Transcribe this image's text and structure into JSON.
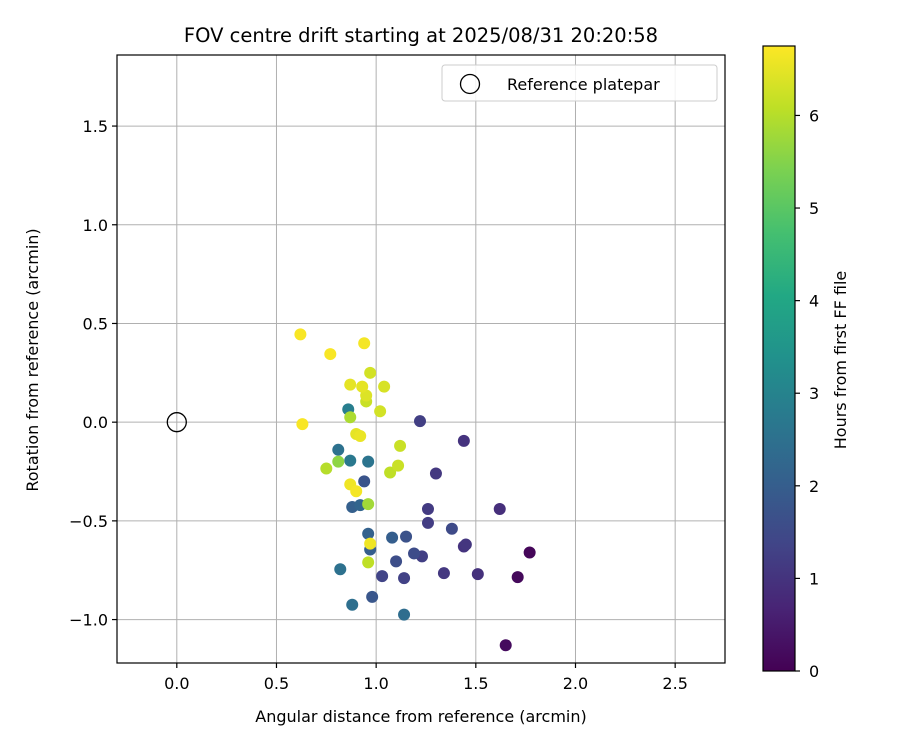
{
  "chart_data": {
    "type": "scatter",
    "title": "FOV centre drift starting at 2025/08/31 20:20:58",
    "xlabel": "Angular distance from reference (arcmin)",
    "ylabel": "Rotation from reference (arcmin)",
    "xlim": [
      -0.3,
      2.75
    ],
    "ylim": [
      -1.22,
      1.86
    ],
    "xticks": [
      0.0,
      0.5,
      1.0,
      1.5,
      2.0,
      2.5
    ],
    "xtick_labels": [
      "0.0",
      "0.5",
      "1.0",
      "1.5",
      "2.0",
      "2.5"
    ],
    "yticks": [
      -1.0,
      -0.5,
      0.0,
      0.5,
      1.0,
      1.5
    ],
    "ytick_labels": [
      "−1.0",
      "−0.5",
      "0.0",
      "0.5",
      "1.0",
      "1.5"
    ],
    "grid": true,
    "legend": {
      "position": "top-right",
      "entries": [
        {
          "label": "Reference platepar",
          "marker": "open-circle"
        }
      ]
    },
    "reference_point": {
      "x": 0.0,
      "y": 0.0
    },
    "colorbar": {
      "label": "Hours from first FF file",
      "colormap": "viridis",
      "range": [
        0,
        6.75
      ],
      "ticks": [
        0,
        1,
        2,
        3,
        4,
        5,
        6
      ],
      "tick_labels": [
        "0",
        "1",
        "2",
        "3",
        "4",
        "5",
        "6"
      ]
    },
    "points": [
      {
        "x": 1.77,
        "y": -0.66,
        "hours": 0.1
      },
      {
        "x": 1.71,
        "y": -0.785,
        "hours": 0.15
      },
      {
        "x": 1.65,
        "y": -1.13,
        "hours": 0.2
      },
      {
        "x": 1.62,
        "y": -0.44,
        "hours": 0.9
      },
      {
        "x": 1.51,
        "y": -0.77,
        "hours": 0.95
      },
      {
        "x": 1.44,
        "y": -0.095,
        "hours": 1.0
      },
      {
        "x": 1.44,
        "y": -0.63,
        "hours": 1.0
      },
      {
        "x": 1.45,
        "y": -0.62,
        "hours": 1.05
      },
      {
        "x": 1.34,
        "y": -0.765,
        "hours": 1.1
      },
      {
        "x": 1.3,
        "y": -0.26,
        "hours": 1.1
      },
      {
        "x": 1.26,
        "y": -0.44,
        "hours": 1.15
      },
      {
        "x": 1.26,
        "y": -0.51,
        "hours": 1.2
      },
      {
        "x": 1.22,
        "y": 0.005,
        "hours": 1.25
      },
      {
        "x": 1.23,
        "y": -0.68,
        "hours": 1.25
      },
      {
        "x": 1.14,
        "y": -0.79,
        "hours": 1.3
      },
      {
        "x": 1.03,
        "y": -0.78,
        "hours": 1.35
      },
      {
        "x": 1.38,
        "y": -0.54,
        "hours": 1.5
      },
      {
        "x": 1.19,
        "y": -0.665,
        "hours": 1.55
      },
      {
        "x": 1.1,
        "y": -0.705,
        "hours": 1.6
      },
      {
        "x": 1.15,
        "y": -0.58,
        "hours": 1.7
      },
      {
        "x": 0.94,
        "y": -0.3,
        "hours": 1.75
      },
      {
        "x": 0.98,
        "y": -0.885,
        "hours": 1.8
      },
      {
        "x": 1.08,
        "y": -0.585,
        "hours": 2.0
      },
      {
        "x": 0.97,
        "y": -0.645,
        "hours": 2.0
      },
      {
        "x": 0.88,
        "y": -0.43,
        "hours": 2.05
      },
      {
        "x": 0.96,
        "y": -0.565,
        "hours": 2.1
      },
      {
        "x": 0.92,
        "y": -0.42,
        "hours": 2.2
      },
      {
        "x": 1.14,
        "y": -0.975,
        "hours": 2.4
      },
      {
        "x": 0.88,
        "y": -0.925,
        "hours": 2.45
      },
      {
        "x": 0.82,
        "y": -0.745,
        "hours": 2.5
      },
      {
        "x": 0.81,
        "y": -0.14,
        "hours": 2.5
      },
      {
        "x": 0.96,
        "y": -0.2,
        "hours": 2.6
      },
      {
        "x": 0.87,
        "y": -0.195,
        "hours": 2.7
      },
      {
        "x": 0.86,
        "y": 0.065,
        "hours": 2.85
      },
      {
        "x": 0.81,
        "y": -0.2,
        "hours": 5.6
      },
      {
        "x": 0.96,
        "y": -0.415,
        "hours": 5.8
      },
      {
        "x": 0.87,
        "y": 0.025,
        "hours": 5.9
      },
      {
        "x": 0.75,
        "y": -0.235,
        "hours": 6.0
      },
      {
        "x": 0.96,
        "y": -0.71,
        "hours": 6.1
      },
      {
        "x": 1.07,
        "y": -0.255,
        "hours": 6.1
      },
      {
        "x": 1.11,
        "y": -0.22,
        "hours": 6.2
      },
      {
        "x": 1.12,
        "y": -0.12,
        "hours": 6.2
      },
      {
        "x": 0.95,
        "y": 0.105,
        "hours": 6.2
      },
      {
        "x": 1.02,
        "y": 0.055,
        "hours": 6.3
      },
      {
        "x": 0.97,
        "y": 0.25,
        "hours": 6.3
      },
      {
        "x": 1.04,
        "y": 0.18,
        "hours": 6.35
      },
      {
        "x": 0.95,
        "y": 0.135,
        "hours": 6.4
      },
      {
        "x": 0.93,
        "y": 0.18,
        "hours": 6.5
      },
      {
        "x": 0.87,
        "y": 0.19,
        "hours": 6.5
      },
      {
        "x": 0.9,
        "y": -0.06,
        "hours": 6.5
      },
      {
        "x": 0.92,
        "y": -0.07,
        "hours": 6.55
      },
      {
        "x": 0.97,
        "y": -0.615,
        "hours": 6.6
      },
      {
        "x": 0.87,
        "y": -0.315,
        "hours": 6.6
      },
      {
        "x": 0.9,
        "y": -0.35,
        "hours": 6.65
      },
      {
        "x": 0.94,
        "y": 0.4,
        "hours": 6.65
      },
      {
        "x": 0.77,
        "y": 0.345,
        "hours": 6.7
      },
      {
        "x": 0.62,
        "y": 0.445,
        "hours": 6.7
      },
      {
        "x": 0.63,
        "y": -0.01,
        "hours": 6.7
      }
    ]
  }
}
